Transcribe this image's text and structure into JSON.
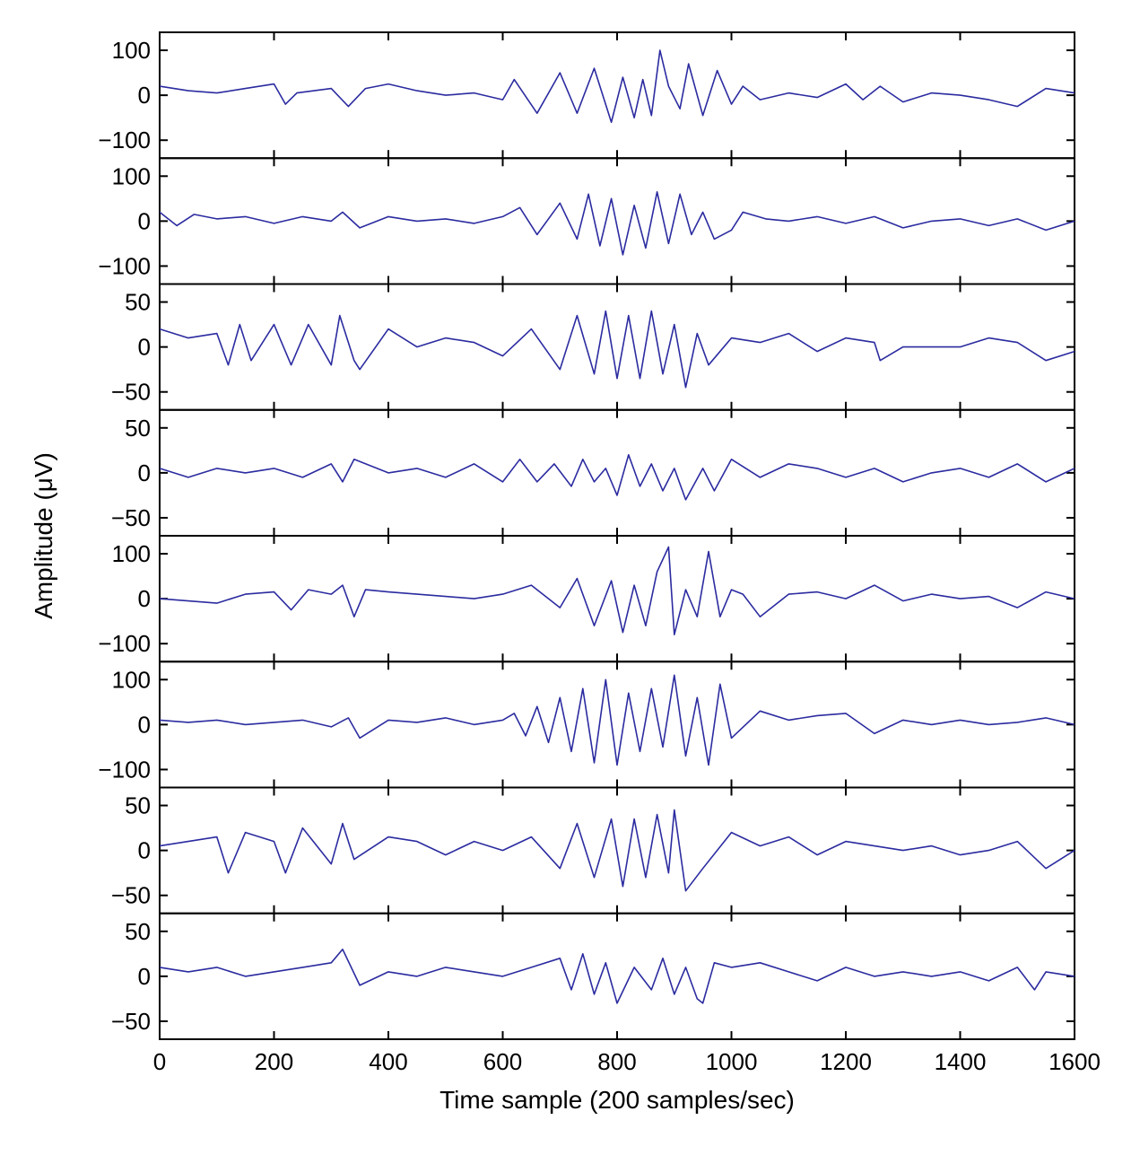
{
  "chart_data": {
    "type": "line",
    "xlabel": "Time sample (200 samples/sec)",
    "ylabel": "Amplitude (μV)",
    "xlim": [
      0,
      1600
    ],
    "x_ticks": [
      "0",
      "200",
      "400",
      "600",
      "800",
      "1000",
      "1200",
      "1400",
      "1600"
    ],
    "x_tick_values": [
      0,
      200,
      400,
      600,
      800,
      1000,
      1200,
      1400,
      1600
    ],
    "line_color": "#2b2ba0",
    "panels": [
      {
        "ylim": [
          -140,
          140
        ],
        "y_tick_values": [
          -100,
          0,
          100
        ],
        "y_ticks": [
          "−100",
          "0",
          "100"
        ],
        "x": [
          0,
          50,
          100,
          150,
          200,
          220,
          240,
          300,
          330,
          360,
          400,
          450,
          500,
          550,
          600,
          620,
          660,
          700,
          730,
          760,
          790,
          810,
          830,
          845,
          860,
          875,
          890,
          910,
          925,
          950,
          975,
          1000,
          1020,
          1050,
          1100,
          1150,
          1200,
          1230,
          1260,
          1300,
          1350,
          1400,
          1450,
          1500,
          1550,
          1600
        ],
        "y": [
          20,
          10,
          5,
          15,
          25,
          -20,
          5,
          15,
          -25,
          15,
          25,
          10,
          0,
          5,
          -10,
          35,
          -40,
          50,
          -40,
          60,
          -60,
          40,
          -50,
          35,
          -45,
          100,
          20,
          -30,
          70,
          -45,
          55,
          -20,
          20,
          -10,
          5,
          -5,
          25,
          -10,
          20,
          -15,
          5,
          0,
          -10,
          -25,
          15,
          5
        ]
      },
      {
        "ylim": [
          -140,
          140
        ],
        "y_tick_values": [
          -100,
          0,
          100
        ],
        "y_ticks": [
          "−100",
          "0",
          "100"
        ],
        "x": [
          0,
          30,
          60,
          100,
          150,
          200,
          250,
          300,
          320,
          350,
          400,
          450,
          500,
          550,
          600,
          630,
          660,
          700,
          730,
          750,
          770,
          790,
          810,
          830,
          850,
          870,
          890,
          910,
          930,
          950,
          970,
          1000,
          1020,
          1060,
          1100,
          1150,
          1200,
          1250,
          1300,
          1350,
          1400,
          1450,
          1500,
          1550,
          1600
        ],
        "y": [
          20,
          -10,
          15,
          5,
          10,
          -5,
          10,
          0,
          20,
          -15,
          10,
          0,
          5,
          -5,
          10,
          30,
          -30,
          40,
          -40,
          60,
          -55,
          50,
          -75,
          35,
          -60,
          65,
          -50,
          60,
          -30,
          20,
          -40,
          -20,
          20,
          5,
          0,
          10,
          -5,
          10,
          -15,
          0,
          5,
          -10,
          5,
          -20,
          0
        ]
      },
      {
        "ylim": [
          -70,
          70
        ],
        "y_tick_values": [
          -50,
          0,
          50
        ],
        "y_ticks": [
          "−50",
          "0",
          "50"
        ],
        "x": [
          0,
          50,
          100,
          120,
          140,
          160,
          200,
          230,
          260,
          300,
          315,
          340,
          350,
          400,
          450,
          500,
          550,
          600,
          650,
          700,
          730,
          760,
          780,
          800,
          820,
          840,
          860,
          880,
          900,
          920,
          940,
          960,
          1000,
          1050,
          1100,
          1150,
          1200,
          1250,
          1260,
          1300,
          1400,
          1450,
          1500,
          1550,
          1600
        ],
        "y": [
          20,
          10,
          15,
          -20,
          25,
          -15,
          25,
          -20,
          25,
          -20,
          35,
          -15,
          -25,
          20,
          0,
          10,
          5,
          -10,
          20,
          -25,
          35,
          -30,
          40,
          -35,
          35,
          -35,
          40,
          -30,
          25,
          -45,
          15,
          -20,
          10,
          5,
          15,
          -5,
          10,
          5,
          -15,
          0,
          0,
          10,
          5,
          -15,
          -5
        ]
      },
      {
        "ylim": [
          -70,
          70
        ],
        "y_tick_values": [
          -50,
          0,
          50
        ],
        "y_ticks": [
          "−50",
          "0",
          "50"
        ],
        "x": [
          0,
          50,
          100,
          150,
          200,
          250,
          300,
          320,
          340,
          400,
          450,
          500,
          550,
          600,
          630,
          660,
          690,
          720,
          740,
          760,
          780,
          800,
          820,
          840,
          860,
          880,
          900,
          920,
          950,
          970,
          1000,
          1050,
          1100,
          1150,
          1200,
          1250,
          1300,
          1350,
          1400,
          1450,
          1500,
          1550,
          1600
        ],
        "y": [
          5,
          -5,
          5,
          0,
          5,
          -5,
          10,
          -10,
          15,
          0,
          5,
          -5,
          10,
          -10,
          15,
          -10,
          10,
          -15,
          15,
          -10,
          5,
          -25,
          20,
          -15,
          10,
          -20,
          5,
          -30,
          5,
          -20,
          15,
          -5,
          10,
          5,
          -5,
          5,
          -10,
          0,
          5,
          -5,
          10,
          -10,
          5
        ]
      },
      {
        "ylim": [
          -140,
          140
        ],
        "y_tick_values": [
          -100,
          0,
          100
        ],
        "y_ticks": [
          "−100",
          "0",
          "100"
        ],
        "x": [
          0,
          50,
          100,
          150,
          200,
          230,
          260,
          300,
          320,
          340,
          360,
          400,
          450,
          500,
          550,
          600,
          650,
          700,
          730,
          760,
          790,
          810,
          830,
          850,
          870,
          890,
          900,
          920,
          940,
          960,
          980,
          1000,
          1020,
          1050,
          1100,
          1150,
          1200,
          1250,
          1300,
          1350,
          1400,
          1450,
          1500,
          1550,
          1600
        ],
        "y": [
          0,
          -5,
          -10,
          10,
          15,
          -25,
          20,
          10,
          30,
          -40,
          20,
          15,
          10,
          5,
          0,
          10,
          30,
          -20,
          45,
          -60,
          40,
          -75,
          30,
          -60,
          60,
          115,
          -80,
          20,
          -40,
          105,
          -40,
          20,
          10,
          -40,
          10,
          15,
          0,
          30,
          -5,
          10,
          0,
          5,
          -20,
          15,
          0
        ]
      },
      {
        "ylim": [
          -140,
          140
        ],
        "y_tick_values": [
          -100,
          0,
          100
        ],
        "y_ticks": [
          "−100",
          "0",
          "100"
        ],
        "x": [
          0,
          50,
          100,
          150,
          200,
          250,
          300,
          330,
          350,
          400,
          450,
          500,
          550,
          600,
          620,
          640,
          660,
          680,
          700,
          720,
          740,
          760,
          780,
          800,
          820,
          840,
          860,
          880,
          900,
          920,
          940,
          960,
          980,
          1000,
          1050,
          1100,
          1150,
          1200,
          1250,
          1300,
          1350,
          1400,
          1450,
          1500,
          1550,
          1600
        ],
        "y": [
          10,
          5,
          10,
          0,
          5,
          10,
          -5,
          15,
          -30,
          10,
          5,
          15,
          0,
          10,
          25,
          -25,
          40,
          -40,
          60,
          -60,
          80,
          -85,
          100,
          -90,
          70,
          -60,
          80,
          -50,
          110,
          -70,
          60,
          -90,
          90,
          -30,
          30,
          10,
          20,
          25,
          -20,
          10,
          0,
          10,
          0,
          5,
          15,
          0
        ]
      },
      {
        "ylim": [
          -70,
          70
        ],
        "y_tick_values": [
          -50,
          0,
          50
        ],
        "y_ticks": [
          "−50",
          "0",
          "50"
        ],
        "x": [
          0,
          50,
          100,
          120,
          150,
          200,
          220,
          250,
          300,
          320,
          340,
          400,
          450,
          500,
          550,
          600,
          650,
          700,
          730,
          760,
          790,
          810,
          830,
          850,
          870,
          890,
          900,
          920,
          950,
          1000,
          1050,
          1100,
          1150,
          1200,
          1250,
          1300,
          1350,
          1400,
          1450,
          1500,
          1550,
          1600
        ],
        "y": [
          5,
          10,
          15,
          -25,
          20,
          10,
          -25,
          25,
          -15,
          30,
          -10,
          15,
          10,
          -5,
          10,
          0,
          15,
          -20,
          30,
          -30,
          35,
          -40,
          35,
          -30,
          40,
          -25,
          45,
          -45,
          -20,
          20,
          5,
          15,
          -5,
          10,
          5,
          0,
          5,
          -5,
          0,
          10,
          -20,
          0
        ]
      },
      {
        "ylim": [
          -70,
          70
        ],
        "y_tick_values": [
          -50,
          0,
          50
        ],
        "y_ticks": [
          "−50",
          "0",
          "50"
        ],
        "x": [
          0,
          50,
          100,
          150,
          200,
          250,
          300,
          320,
          350,
          400,
          450,
          500,
          550,
          600,
          650,
          700,
          720,
          740,
          760,
          780,
          800,
          830,
          860,
          880,
          900,
          920,
          940,
          950,
          970,
          1000,
          1050,
          1100,
          1150,
          1200,
          1250,
          1300,
          1350,
          1400,
          1450,
          1500,
          1530,
          1550,
          1600
        ],
        "y": [
          10,
          5,
          10,
          0,
          5,
          10,
          15,
          30,
          -10,
          5,
          0,
          10,
          5,
          0,
          10,
          20,
          -15,
          25,
          -20,
          15,
          -30,
          10,
          -15,
          20,
          -20,
          10,
          -25,
          -30,
          15,
          10,
          15,
          5,
          -5,
          10,
          0,
          5,
          0,
          5,
          -5,
          10,
          -15,
          5,
          0
        ]
      }
    ]
  }
}
